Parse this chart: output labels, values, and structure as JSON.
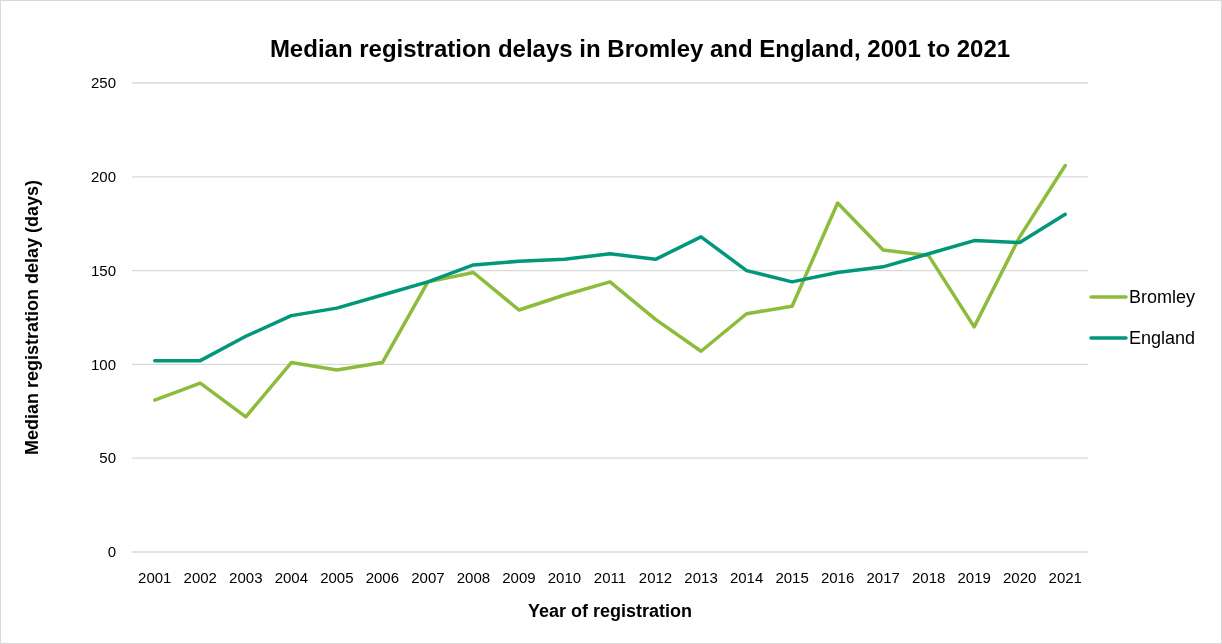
{
  "chart_data": {
    "type": "line",
    "title": "Median registration delays in Bromley and England, 2001 to 2021",
    "xlabel": "Year of registration",
    "ylabel": "Median registration delay (days)",
    "categories": [
      "2001",
      "2002",
      "2003",
      "2004",
      "2005",
      "2006",
      "2007",
      "2008",
      "2009",
      "2010",
      "2011",
      "2012",
      "2013",
      "2014",
      "2015",
      "2016",
      "2017",
      "2018",
      "2019",
      "2020",
      "2021"
    ],
    "series": [
      {
        "name": "Bromley",
        "color": "#8dbb3c",
        "values": [
          81,
          90,
          72,
          101,
          97,
          101,
          144,
          149,
          129,
          137,
          144,
          124,
          107,
          127,
          131,
          186,
          161,
          158,
          120,
          168,
          206
        ]
      },
      {
        "name": "England",
        "color": "#00977a",
        "values": [
          102,
          102,
          115,
          126,
          130,
          137,
          144,
          153,
          155,
          156,
          159,
          156,
          168,
          150,
          144,
          149,
          152,
          159,
          166,
          165,
          180
        ]
      }
    ],
    "ylim": [
      0,
      250
    ],
    "yticks": [
      0,
      50,
      100,
      150,
      200,
      250
    ],
    "grid": "y",
    "legend": "right"
  }
}
